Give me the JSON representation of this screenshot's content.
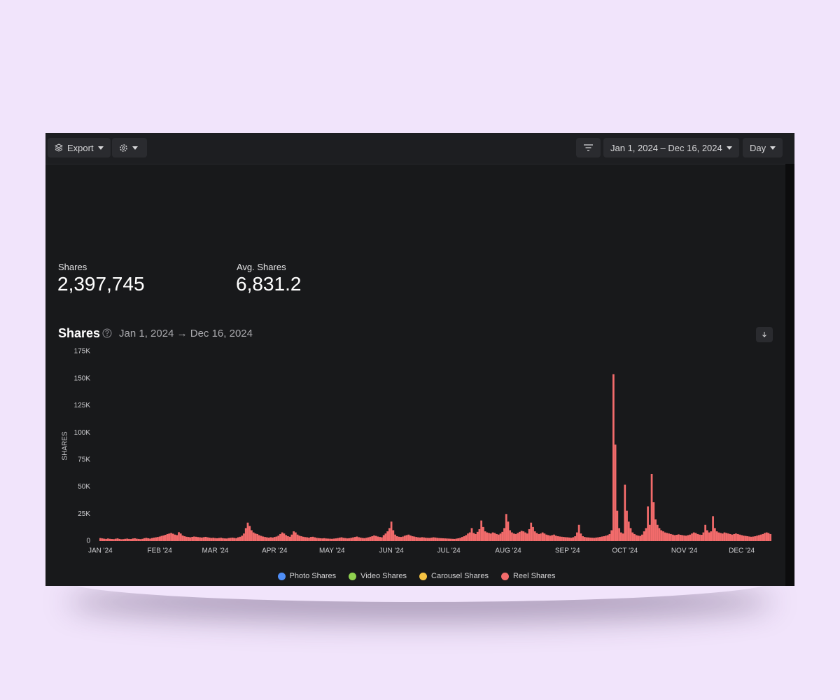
{
  "toolbar": {
    "export": "Export",
    "date_range": "Jan 1, 2024 – Dec 16, 2024",
    "granularity": "Day"
  },
  "stats": [
    {
      "label": "Shares",
      "value": "2,397,745"
    },
    {
      "label": "Avg. Shares",
      "value": "6,831.2"
    }
  ],
  "chart_data": {
    "type": "bar",
    "stacked": true,
    "title": "Shares",
    "subtitle": "Jan 1, 2024 → Dec 16, 2024",
    "y_label": "SHARES",
    "ylim": [
      0,
      175000
    ],
    "yticks": [
      0,
      {
        "value": 25000,
        "label": "25K"
      },
      {
        "value": 50000,
        "label": "50K"
      },
      {
        "value": 75000,
        "label": "75K"
      },
      {
        "value": 100000,
        "label": "100K"
      },
      {
        "value": 125000,
        "label": "125K"
      },
      {
        "value": 150000,
        "label": "150K"
      },
      {
        "value": 175000,
        "label": "175K"
      }
    ],
    "grid": false,
    "categories": [
      "JAN '24",
      null,
      null,
      null,
      null,
      null,
      null,
      null,
      null,
      null,
      null,
      null,
      null,
      null,
      null,
      null,
      null,
      null,
      null,
      null,
      null,
      null,
      null,
      null,
      null,
      null,
      null,
      null,
      null,
      null,
      null,
      "FEB '24",
      null,
      null,
      null,
      null,
      null,
      null,
      null,
      null,
      null,
      null,
      null,
      null,
      null,
      null,
      null,
      null,
      null,
      null,
      null,
      null,
      null,
      null,
      null,
      null,
      null,
      null,
      null,
      null,
      "MAR '24",
      null,
      null,
      null,
      null,
      null,
      null,
      null,
      null,
      null,
      null,
      null,
      null,
      null,
      null,
      null,
      null,
      null,
      null,
      null,
      null,
      null,
      null,
      null,
      null,
      null,
      null,
      null,
      null,
      null,
      null,
      "APR '24",
      null,
      null,
      null,
      null,
      null,
      null,
      null,
      null,
      null,
      null,
      null,
      null,
      null,
      null,
      null,
      null,
      null,
      null,
      null,
      null,
      null,
      null,
      null,
      null,
      null,
      null,
      null,
      null,
      null,
      "MAY '24",
      null,
      null,
      null,
      null,
      null,
      null,
      null,
      null,
      null,
      null,
      null,
      null,
      null,
      null,
      null,
      null,
      null,
      null,
      null,
      null,
      null,
      null,
      null,
      null,
      null,
      null,
      null,
      null,
      null,
      null,
      "JUN '24",
      null,
      null,
      null,
      null,
      null,
      null,
      null,
      null,
      null,
      null,
      null,
      null,
      null,
      null,
      null,
      null,
      null,
      null,
      null,
      null,
      null,
      null,
      null,
      null,
      null,
      null,
      null,
      null,
      null,
      "JUL '24",
      null,
      null,
      null,
      null,
      null,
      null,
      null,
      null,
      null,
      null,
      null,
      null,
      null,
      null,
      null,
      null,
      null,
      null,
      null,
      null,
      null,
      null,
      null,
      null,
      null,
      null,
      null,
      null,
      null,
      null,
      "AUG '24",
      null,
      null,
      null,
      null,
      null,
      null,
      null,
      null,
      null,
      null,
      null,
      null,
      null,
      null,
      null,
      null,
      null,
      null,
      null,
      null,
      null,
      null,
      null,
      null,
      null,
      null,
      null,
      null,
      null,
      null,
      "SEP '24",
      null,
      null,
      null,
      null,
      null,
      null,
      null,
      null,
      null,
      null,
      null,
      null,
      null,
      null,
      null,
      null,
      null,
      null,
      null,
      null,
      null,
      null,
      null,
      null,
      null,
      null,
      null,
      null,
      null,
      "OCT '24",
      null,
      null,
      null,
      null,
      null,
      null,
      null,
      null,
      null,
      null,
      null,
      null,
      null,
      null,
      null,
      null,
      null,
      null,
      null,
      null,
      null,
      null,
      null,
      null,
      null,
      null,
      null,
      null,
      null,
      null,
      "NOV '24",
      null,
      null,
      null,
      null,
      null,
      null,
      null,
      null,
      null,
      null,
      null,
      null,
      null,
      null,
      null,
      null,
      null,
      null,
      null,
      null,
      null,
      null,
      null,
      null,
      null,
      null,
      null,
      null,
      null,
      "DEC '24",
      null,
      null,
      null,
      null,
      null,
      null,
      null,
      null,
      null,
      null,
      null,
      null,
      null,
      null,
      null
    ],
    "series": [
      {
        "name": "Photo Shares",
        "color": "#4f8ef7"
      },
      {
        "name": "Video Shares",
        "color": "#8fd14f"
      },
      {
        "name": "Carousel Shares",
        "color": "#f5c242"
      },
      {
        "name": "Reel Shares",
        "color": "#f26b6b",
        "values": [
          2800,
          2500,
          2200,
          2000,
          2400,
          2100,
          1900,
          1800,
          2200,
          2500,
          2000,
          1700,
          1800,
          2100,
          2300,
          2000,
          1900,
          2400,
          2600,
          2200,
          2000,
          1800,
          2100,
          2700,
          3000,
          2600,
          2300,
          2800,
          3200,
          3500,
          3800,
          4200,
          4800,
          5200,
          5800,
          6500,
          7000,
          7500,
          6800,
          6000,
          5500,
          8200,
          7000,
          5200,
          4500,
          4000,
          3800,
          3500,
          3900,
          4200,
          4000,
          3700,
          3500,
          3300,
          3600,
          3900,
          3500,
          3200,
          2900,
          3100,
          2800,
          2600,
          2900,
          3100,
          2700,
          2500,
          2400,
          2800,
          3000,
          3200,
          2900,
          2700,
          3500,
          4000,
          5000,
          7000,
          12000,
          17000,
          14000,
          10000,
          8000,
          7000,
          6500,
          5500,
          4800,
          4200,
          3800,
          3500,
          3200,
          3600,
          3300,
          3800,
          4200,
          5000,
          6500,
          8000,
          7000,
          5500,
          4500,
          4000,
          6000,
          9000,
          8000,
          6000,
          5000,
          4500,
          4000,
          3700,
          3500,
          3200,
          3800,
          4000,
          3500,
          3000,
          2800,
          2600,
          2500,
          2700,
          2400,
          2300,
          2200,
          2100,
          2300,
          2500,
          2800,
          3200,
          3500,
          3000,
          2800,
          2500,
          2700,
          3000,
          3400,
          3800,
          4200,
          3600,
          3200,
          2900,
          2700,
          3100,
          3500,
          4000,
          4500,
          5200,
          4800,
          4200,
          3800,
          3500,
          5500,
          7000,
          9000,
          12000,
          18000,
          10000,
          6000,
          4500,
          4000,
          3800,
          4200,
          5000,
          5500,
          6000,
          5200,
          4500,
          4200,
          3800,
          3500,
          3300,
          3600,
          3400,
          3100,
          3000,
          2900,
          3200,
          3500,
          3300,
          3000,
          2800,
          2700,
          2600,
          2500,
          2400,
          2300,
          2200,
          2100,
          2000,
          2300,
          2600,
          3000,
          3800,
          4500,
          5500,
          7000,
          8000,
          12000,
          7500,
          6500,
          8500,
          11000,
          19000,
          13000,
          9000,
          8000,
          7500,
          7000,
          8000,
          7500,
          6500,
          6000,
          7000,
          8500,
          12000,
          25000,
          18000,
          10000,
          8000,
          7000,
          6500,
          7500,
          8500,
          9500,
          9000,
          8000,
          7000,
          11000,
          17000,
          13000,
          9000,
          7500,
          6500,
          7000,
          8000,
          7000,
          6000,
          5500,
          5000,
          5500,
          6000,
          5000,
          4500,
          4200,
          4000,
          3800,
          3600,
          3500,
          3300,
          3100,
          3600,
          4500,
          8000,
          15000,
          7000,
          4500,
          3800,
          3500,
          3400,
          3200,
          3100,
          3000,
          3300,
          3500,
          3800,
          4200,
          4500,
          5000,
          5500,
          6500,
          10000,
          154000,
          89000,
          28000,
          12000,
          8000,
          7000,
          52000,
          28000,
          18000,
          12000,
          8000,
          6500,
          5500,
          5000,
          4800,
          6000,
          9000,
          12000,
          32000,
          15000,
          62000,
          36000,
          20000,
          15000,
          12000,
          10000,
          9000,
          8000,
          7500,
          7000,
          6500,
          6000,
          5500,
          5800,
          6200,
          5800,
          5500,
          5200,
          5000,
          5500,
          6000,
          7000,
          8000,
          7500,
          6500,
          6000,
          5800,
          8000,
          15000,
          10000,
          8000,
          9000,
          23000,
          12000,
          9000,
          8000,
          7500,
          7000,
          8000,
          7500,
          7000,
          6500,
          6000,
          6500,
          7000,
          6500,
          6000,
          5500,
          5000,
          4800,
          4500,
          4200,
          4000,
          4200,
          4500,
          5000,
          5500,
          6000,
          6500,
          7500,
          8000,
          7500,
          6500
        ]
      }
    ]
  }
}
